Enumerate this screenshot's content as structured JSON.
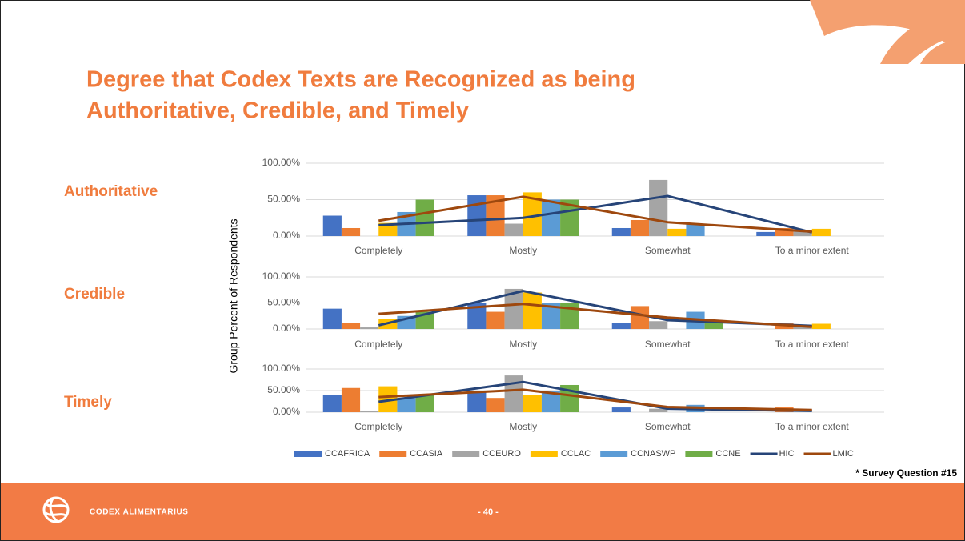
{
  "slide": {
    "title_lines": [
      "Degree that Codex Texts are Recognized as being",
      "Authoritative, Credible, and Timely"
    ],
    "ylabel": "Group Percent of Respondents",
    "note": "* Survey Question #15",
    "brand": "CODEX ALIMENTARIUS",
    "page": "- 40 -"
  },
  "chart_data": [
    {
      "type": "bar",
      "title": "Authoritative",
      "categories": [
        "Completely",
        "Mostly",
        "Somewhat",
        "To a minor extent"
      ],
      "ylim": [
        0,
        100
      ],
      "yticks": [
        {
          "value": 0,
          "label": "0.00%"
        },
        {
          "value": 50,
          "label": "50.00%"
        },
        {
          "value": 100,
          "label": "100.00%"
        }
      ],
      "grid": true,
      "series": [
        {
          "name": "CCAFRICA",
          "color": "#4472c4",
          "values": [
            28,
            56,
            11,
            5.6
          ]
        },
        {
          "name": "CCASIA",
          "color": "#ed7d31",
          "values": [
            11,
            56,
            22,
            11
          ]
        },
        {
          "name": "CCEURO",
          "color": "#a5a5a5",
          "values": [
            0,
            17,
            77,
            6
          ]
        },
        {
          "name": "CCLAC",
          "color": "#ffc000",
          "values": [
            18,
            60,
            10,
            10
          ]
        },
        {
          "name": "CCNASWP",
          "color": "#5b9bd5",
          "values": [
            33,
            50,
            17,
            0
          ]
        },
        {
          "name": "CCNE",
          "color": "#70ad47",
          "values": [
            50,
            50,
            0,
            0
          ]
        },
        {
          "name": "HIC",
          "color": "#264478",
          "type": "line",
          "values": [
            15,
            25,
            55,
            5
          ]
        },
        {
          "name": "LMIC",
          "color": "#9e480e",
          "type": "line",
          "values": [
            21,
            54,
            19,
            6
          ]
        }
      ]
    },
    {
      "type": "bar",
      "title": "Credible",
      "categories": [
        "Completely",
        "Mostly",
        "Somewhat",
        "To a minor extent"
      ],
      "ylim": [
        0,
        100
      ],
      "yticks": [
        {
          "value": 0,
          "label": "0.00%"
        },
        {
          "value": 50,
          "label": "50.00%"
        },
        {
          "value": 100,
          "label": "100.00%"
        }
      ],
      "grid": true,
      "series": [
        {
          "name": "CCAFRICA",
          "color": "#4472c4",
          "values": [
            39,
            50,
            11,
            0
          ]
        },
        {
          "name": "CCASIA",
          "color": "#ed7d31",
          "values": [
            11,
            33,
            44,
            11
          ]
        },
        {
          "name": "CCEURO",
          "color": "#a5a5a5",
          "values": [
            3,
            77,
            15,
            8
          ]
        },
        {
          "name": "CCLAC",
          "color": "#ffc000",
          "values": [
            20,
            70,
            0,
            10
          ]
        },
        {
          "name": "CCNASWP",
          "color": "#5b9bd5",
          "values": [
            25,
            50,
            33,
            0
          ]
        },
        {
          "name": "CCNE",
          "color": "#70ad47",
          "values": [
            33,
            50,
            17,
            0
          ]
        },
        {
          "name": "HIC",
          "color": "#264478",
          "type": "line",
          "values": [
            7,
            73,
            17,
            6
          ]
        },
        {
          "name": "LMIC",
          "color": "#9e480e",
          "type": "line",
          "values": [
            29,
            48,
            22,
            4
          ]
        }
      ]
    },
    {
      "type": "bar",
      "title": "Timely",
      "categories": [
        "Completely",
        "Mostly",
        "Somewhat",
        "To a minor extent"
      ],
      "ylim": [
        0,
        100
      ],
      "yticks": [
        {
          "value": 0,
          "label": "0.00%"
        },
        {
          "value": 50,
          "label": "50.00%"
        },
        {
          "value": 100,
          "label": "100.00%"
        }
      ],
      "grid": true,
      "series": [
        {
          "name": "CCAFRICA",
          "color": "#4472c4",
          "values": [
            39,
            50,
            11,
            0
          ]
        },
        {
          "name": "CCASIA",
          "color": "#ed7d31",
          "values": [
            56,
            33,
            0,
            11
          ]
        },
        {
          "name": "CCEURO",
          "color": "#a5a5a5",
          "values": [
            3,
            85,
            8,
            0
          ]
        },
        {
          "name": "CCLAC",
          "color": "#ffc000",
          "values": [
            60,
            40,
            0,
            0
          ]
        },
        {
          "name": "CCNASWP",
          "color": "#5b9bd5",
          "values": [
            33,
            50,
            17,
            0
          ]
        },
        {
          "name": "CCNE",
          "color": "#70ad47",
          "values": [
            40,
            63,
            0,
            0
          ]
        },
        {
          "name": "HIC",
          "color": "#264478",
          "type": "line",
          "values": [
            24,
            70,
            8,
            3
          ]
        },
        {
          "name": "LMIC",
          "color": "#9e480e",
          "type": "line",
          "values": [
            35,
            52,
            12,
            5
          ]
        }
      ]
    }
  ]
}
